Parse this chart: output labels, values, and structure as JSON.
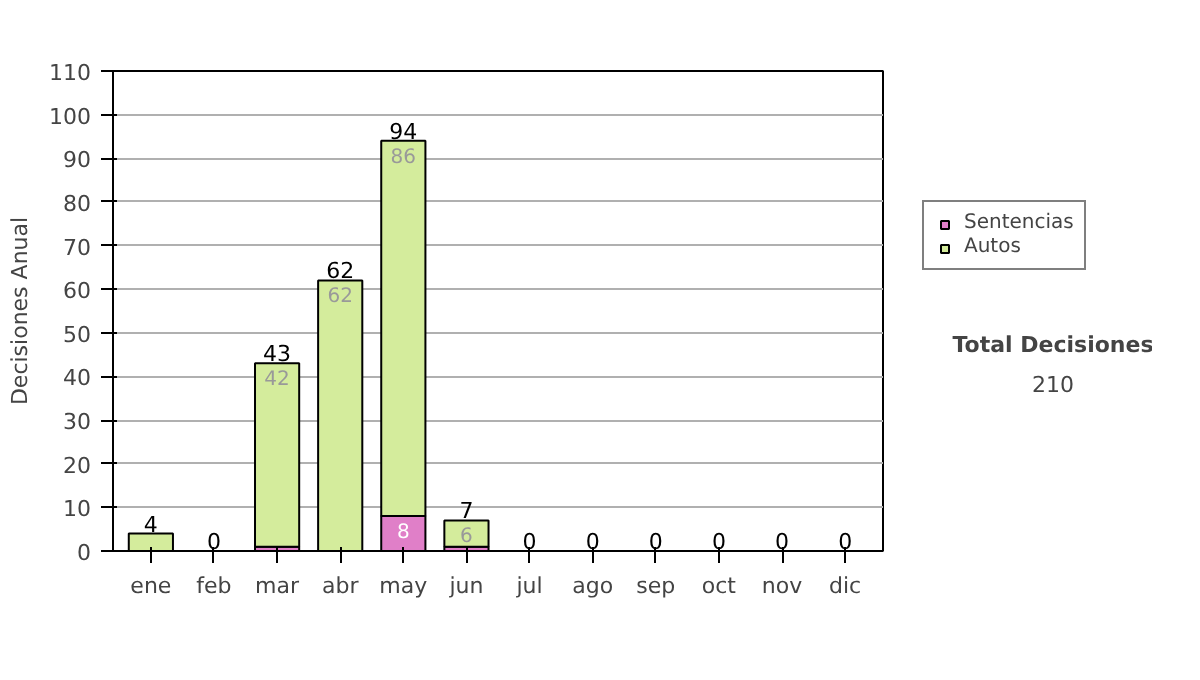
{
  "chart_data": {
    "type": "bar",
    "stacked": true,
    "ylabel": "Decisiones Anual",
    "categories": [
      "ene",
      "feb",
      "mar",
      "abr",
      "may",
      "jun",
      "jul",
      "ago",
      "sep",
      "oct",
      "nov",
      "dic"
    ],
    "series": [
      {
        "name": "Sentencias",
        "color": "#e07fc8",
        "values": [
          0,
          0,
          1,
          0,
          8,
          1,
          0,
          0,
          0,
          0,
          0,
          0
        ],
        "value_labels": [
          null,
          null,
          null,
          null,
          "8",
          null,
          null,
          null,
          null,
          null,
          null,
          null
        ]
      },
      {
        "name": "Autos",
        "color": "#d4ec9c",
        "values": [
          4,
          0,
          42,
          62,
          86,
          6,
          0,
          0,
          0,
          0,
          0,
          0
        ],
        "value_labels": [
          null,
          null,
          "42",
          "62",
          "86",
          "6",
          null,
          null,
          null,
          null,
          null,
          null
        ]
      }
    ],
    "totals": [
      "4",
      "0",
      "43",
      "62",
      "94",
      "7",
      "0",
      "0",
      "0",
      "0",
      "0",
      "0"
    ],
    "ylim": [
      0,
      110
    ],
    "yticks": [
      0,
      10,
      20,
      30,
      40,
      50,
      60,
      70,
      80,
      90,
      100,
      110
    ],
    "grid": "y",
    "legend": "right",
    "annotations": [
      "Total Decisiones",
      "210"
    ]
  }
}
